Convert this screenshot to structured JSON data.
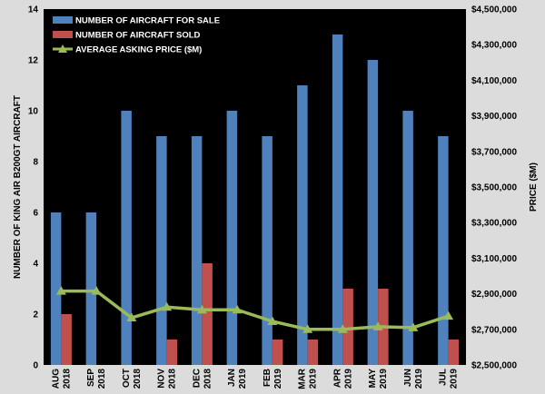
{
  "chart_data": {
    "type": "bar",
    "categories": [
      [
        "AUG",
        "2018"
      ],
      [
        "SEP",
        "2018"
      ],
      [
        "OCT",
        "2018"
      ],
      [
        "NOV",
        "2018"
      ],
      [
        "DEC",
        "2018"
      ],
      [
        "JAN",
        "2019"
      ],
      [
        "FEB",
        "2019"
      ],
      [
        "MAR",
        "2019"
      ],
      [
        "APR",
        "2019"
      ],
      [
        "MAY",
        "2019"
      ],
      [
        "JUN",
        "2019"
      ],
      [
        "JUL",
        "2019"
      ]
    ],
    "series": [
      {
        "name": "NUMBER OF AIRCRAFT FOR SALE",
        "type": "bar",
        "axis": "left",
        "color": "#4f81bd",
        "values": [
          6,
          6,
          10,
          9,
          9,
          10,
          9,
          11,
          13,
          12,
          10,
          9
        ]
      },
      {
        "name": "NUMBER OF AIRCRAFT SOLD",
        "type": "bar",
        "axis": "left",
        "color": "#c0504d",
        "values": [
          2,
          0,
          0,
          1,
          4,
          0,
          1,
          1,
          3,
          3,
          0,
          1
        ]
      },
      {
        "name": "AVERAGE ASKING PRICE ($M)",
        "type": "line",
        "axis": "right",
        "color": "#9bbb59",
        "values": [
          2915000,
          2915000,
          2765000,
          2825000,
          2810000,
          2810000,
          2745000,
          2700000,
          2700000,
          2715000,
          2710000,
          2775000
        ]
      }
    ],
    "ylabel": "NUMBER OF KING AIR B200GT AIRCRAFT",
    "y2label": "PRICE ($M)",
    "ylim": [
      0,
      14
    ],
    "yticks": [
      0,
      2,
      4,
      6,
      8,
      10,
      12,
      14
    ],
    "y2lim": [
      2500000,
      4500000
    ],
    "y2ticks": [
      "$2,500,000",
      "$2,700,000",
      "$2,900,000",
      "$3,100,000",
      "$3,300,000",
      "$3,500,000",
      "$3,700,000",
      "$3,900,000",
      "$4,100,000",
      "$4,300,000",
      "$4,500,000"
    ],
    "grid": false,
    "legend": "top-left",
    "colors": {
      "plot_background": "#000000",
      "page_background": "#dcdcdc"
    }
  }
}
